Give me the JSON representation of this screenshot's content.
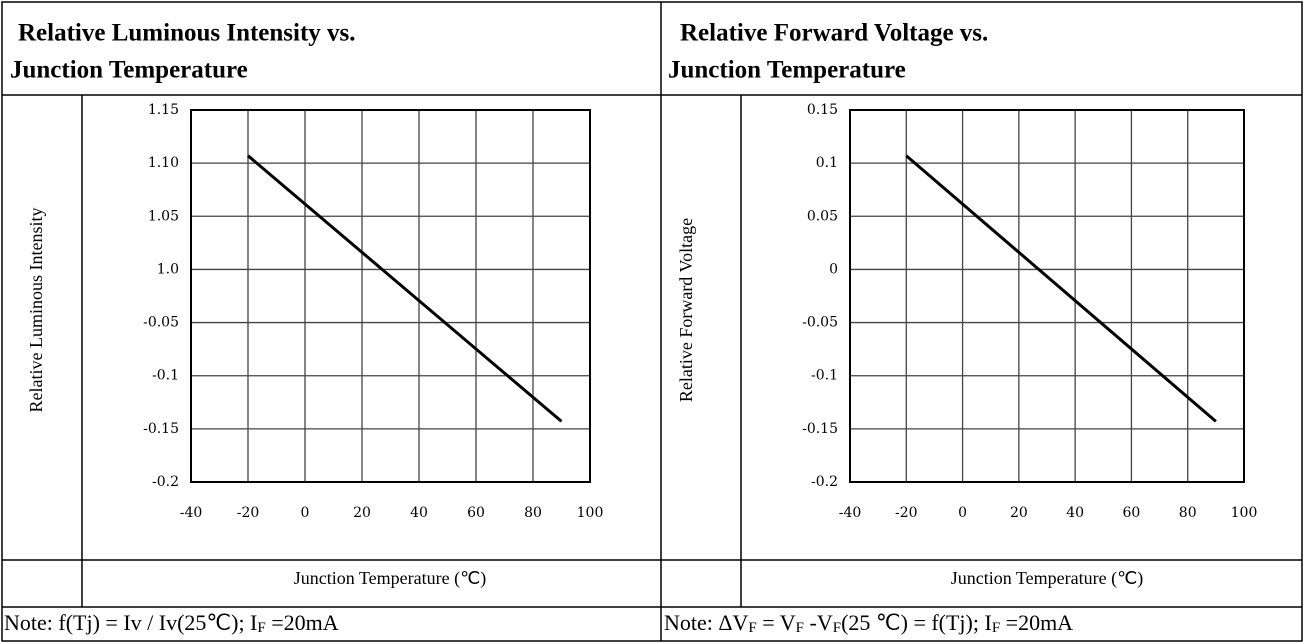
{
  "panels": [
    {
      "title": [
        "Relative Luminous Intensity vs.",
        "Junction Temperature"
      ],
      "chart": {
        "type": "line",
        "y_label": "Relative Luminous Intensity",
        "x_label": "Junction Temperature (℃)",
        "x": [
          -20,
          90
        ],
        "values": [
          0.107,
          -0.143
        ],
        "color": "#000000",
        "xlim": [
          -40,
          100
        ],
        "xticks": [
          -40,
          -20,
          0,
          20,
          40,
          60,
          80,
          100
        ],
        "ylim": [
          -0.2,
          0.15
        ],
        "yticks": [
          {
            "value": 0.15,
            "label": "1.15"
          },
          {
            "value": 0.1,
            "label": "1.10"
          },
          {
            "value": 0.05,
            "label": "1.05"
          },
          {
            "value": 0,
            "label": "1.0"
          },
          -0.05,
          -0.1,
          -0.15,
          -0.2
        ],
        "grid": true
      },
      "note": [
        "Note: f(Tj) = Iv / Iv(25℃); I",
        "F",
        " =20mA"
      ]
    },
    {
      "title": [
        "Relative Forward Voltage vs.",
        "Junction Temperature"
      ],
      "chart": {
        "type": "line",
        "y_label": "Relative Forward Voltage",
        "x_label": "Junction Temperature (℃)",
        "x": [
          -20,
          90
        ],
        "values": [
          0.107,
          -0.143
        ],
        "color": "#000000",
        "xlim": [
          -40,
          100
        ],
        "xticks": [
          -40,
          -20,
          0,
          20,
          40,
          60,
          80,
          100
        ],
        "ylim": [
          -0.2,
          0.15
        ],
        "yticks": [
          0.15,
          0.1,
          0.05,
          0,
          -0.05,
          -0.1,
          -0.15,
          -0.2
        ],
        "grid": true
      },
      "note": [
        "Note: ΔV",
        "F",
        " = V",
        "F",
        " -V",
        "F",
        "(25  ℃) = f(Tj); I",
        "F",
        " =20mA"
      ]
    }
  ]
}
